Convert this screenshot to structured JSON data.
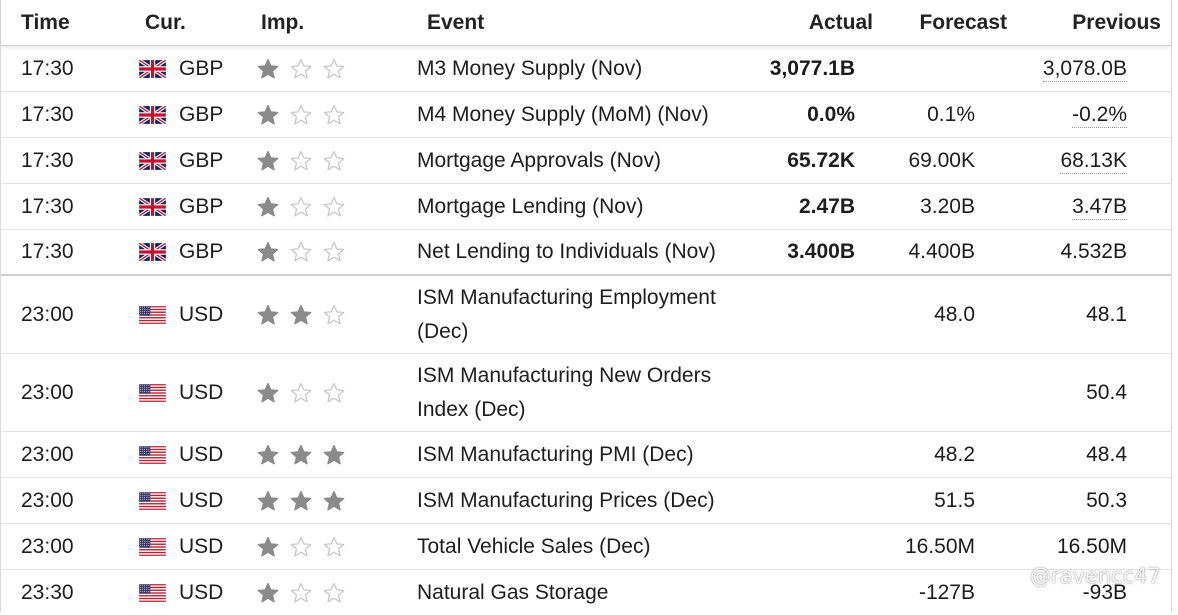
{
  "colors": {
    "negative": "#d0021b",
    "positive": "#1f9d1f",
    "neutral": "#1a1a1a",
    "star_filled": "#8a8a8a",
    "star_empty": "#c8c8c8"
  },
  "header": {
    "time": "Time",
    "currency": "Cur.",
    "importance": "Imp.",
    "event": "Event",
    "actual": "Actual",
    "forecast": "Forecast",
    "previous": "Previous"
  },
  "rows": [
    {
      "time": "17:30",
      "flag": "uk-flag-icon",
      "currency": "GBP",
      "importance": 1,
      "event": [
        "M3 Money Supply (Nov)"
      ],
      "actual": "3,077.1B",
      "actual_tone": "neutral",
      "forecast": "",
      "previous": "3,078.0B",
      "previous_tone": "positive",
      "previous_revised": true
    },
    {
      "time": "17:30",
      "flag": "uk-flag-icon",
      "currency": "GBP",
      "importance": 1,
      "event": [
        "M4 Money Supply (MoM) (Nov)"
      ],
      "actual": "0.0%",
      "actual_tone": "negative",
      "forecast": "0.1%",
      "previous": "-0.2%",
      "previous_tone": "negative",
      "previous_revised": true
    },
    {
      "time": "17:30",
      "flag": "uk-flag-icon",
      "currency": "GBP",
      "importance": 1,
      "event": [
        "Mortgage Approvals (Nov)"
      ],
      "actual": "65.72K",
      "actual_tone": "negative",
      "forecast": "69.00K",
      "previous": "68.13K",
      "previous_tone": "negative",
      "previous_revised": true
    },
    {
      "time": "17:30",
      "flag": "uk-flag-icon",
      "currency": "GBP",
      "importance": 1,
      "event": [
        "Mortgage Lending (Nov)"
      ],
      "actual": "2.47B",
      "actual_tone": "negative",
      "forecast": "3.20B",
      "previous": "3.47B",
      "previous_tone": "positive",
      "previous_revised": true
    },
    {
      "time": "17:30",
      "flag": "uk-flag-icon",
      "currency": "GBP",
      "importance": 1,
      "event": [
        "Net Lending to Individuals (Nov)"
      ],
      "actual": "3.400B",
      "actual_tone": "negative",
      "forecast": "4.400B",
      "previous": "4.532B",
      "previous_tone": "neutral",
      "previous_revised": false
    },
    {
      "time": "23:00",
      "flag": "us-flag-icon",
      "currency": "USD",
      "importance": 2,
      "event": [
        "ISM Manufacturing Employment",
        "(Dec)"
      ],
      "actual": "",
      "actual_tone": "neutral",
      "forecast": "48.0",
      "previous": "48.1",
      "previous_tone": "neutral",
      "previous_revised": false
    },
    {
      "time": "23:00",
      "flag": "us-flag-icon",
      "currency": "USD",
      "importance": 1,
      "event": [
        "ISM Manufacturing New Orders",
        "Index (Dec)"
      ],
      "actual": "",
      "actual_tone": "neutral",
      "forecast": "",
      "previous": "50.4",
      "previous_tone": "neutral",
      "previous_revised": false
    },
    {
      "time": "23:00",
      "flag": "us-flag-icon",
      "currency": "USD",
      "importance": 3,
      "event": [
        "ISM Manufacturing PMI (Dec)"
      ],
      "actual": "",
      "actual_tone": "neutral",
      "forecast": "48.2",
      "previous": "48.4",
      "previous_tone": "neutral",
      "previous_revised": false
    },
    {
      "time": "23:00",
      "flag": "us-flag-icon",
      "currency": "USD",
      "importance": 3,
      "event": [
        "ISM Manufacturing Prices (Dec)"
      ],
      "actual": "",
      "actual_tone": "neutral",
      "forecast": "51.5",
      "previous": "50.3",
      "previous_tone": "neutral",
      "previous_revised": false
    },
    {
      "time": "23:00",
      "flag": "us-flag-icon",
      "currency": "USD",
      "importance": 1,
      "event": [
        "Total Vehicle Sales (Dec)"
      ],
      "actual": "",
      "actual_tone": "neutral",
      "forecast": "16.50M",
      "previous": "16.50M",
      "previous_tone": "neutral",
      "previous_revised": false
    },
    {
      "time": "23:30",
      "flag": "us-flag-icon",
      "currency": "USD",
      "importance": 1,
      "event": [
        "Natural Gas Storage"
      ],
      "actual": "",
      "actual_tone": "neutral",
      "forecast": "-127B",
      "previous": "-93B",
      "previous_tone": "neutral",
      "previous_revised": false
    }
  ],
  "watermark": "@ravencc47"
}
